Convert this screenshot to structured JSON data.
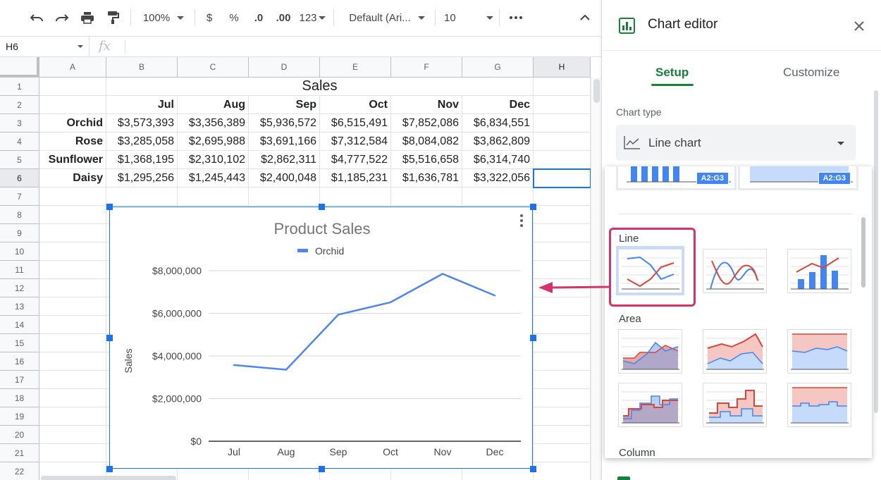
{
  "toolbar": {
    "zoom": "100%",
    "currency": "$",
    "percent": "%",
    "dec_decrease": ".0",
    "dec_increase": ".00",
    "more_formats": "123",
    "font": "Default (Ari...",
    "font_size": "10"
  },
  "formula_bar": {
    "cell_ref": "H6",
    "fx": "fx",
    "formula": ""
  },
  "sheet": {
    "columns": [
      "A",
      "B",
      "C",
      "D",
      "E",
      "F",
      "G",
      "H"
    ],
    "rows": [
      "1",
      "2",
      "3",
      "4",
      "5",
      "6",
      "7",
      "8",
      "9",
      "10",
      "11",
      "12",
      "13",
      "14",
      "15",
      "16",
      "17",
      "18",
      "19",
      "20",
      "21",
      "22"
    ],
    "title": "Sales",
    "months": [
      "Jul",
      "Aug",
      "Sep",
      "Oct",
      "Nov",
      "Dec"
    ],
    "data": [
      {
        "name": "Orchid",
        "values": [
          "$3,573,393",
          "$3,356,389",
          "$5,936,572",
          "$6,515,491",
          "$7,852,086",
          "$6,834,551"
        ]
      },
      {
        "name": "Rose",
        "values": [
          "$3,285,058",
          "$2,695,988",
          "$3,691,166",
          "$7,312,584",
          "$8,084,082",
          "$3,862,809"
        ]
      },
      {
        "name": "Sunflower",
        "values": [
          "$1,368,195",
          "$2,310,102",
          "$2,862,311",
          "$4,777,522",
          "$5,516,658",
          "$6,314,740"
        ]
      },
      {
        "name": "Daisy",
        "values": [
          "$1,295,256",
          "$1,245,443",
          "$2,400,048",
          "$1,185,231",
          "$1,636,781",
          "$3,322,056"
        ]
      }
    ]
  },
  "chart_data": {
    "type": "line",
    "title": "Product Sales",
    "ylabel": "Sales",
    "xlabel": "",
    "categories": [
      "Jul",
      "Aug",
      "Sep",
      "Oct",
      "Nov",
      "Dec"
    ],
    "series": [
      {
        "name": "Orchid",
        "color": "#4f86ec",
        "values": [
          3573393,
          3356389,
          5936572,
          6515491,
          7852086,
          6834551
        ]
      }
    ],
    "ylim": [
      0,
      8000000
    ],
    "yticks": [
      0,
      2000000,
      4000000,
      6000000,
      8000000
    ],
    "ytick_labels": [
      "$0",
      "$2,000,000",
      "$4,000,000",
      "$6,000,000",
      "$8,000,000"
    ],
    "grid": true,
    "legend": "top"
  },
  "editor": {
    "title": "Chart editor",
    "tabs": [
      "Setup",
      "Customize"
    ],
    "chart_type_label": "Chart type",
    "chart_type_value": "Line chart",
    "range_badge": "A2:G3",
    "sections": [
      "Line",
      "Area",
      "Column"
    ]
  },
  "colors": {
    "accent": "#1a73e8",
    "green": "#188038",
    "series_blue": "#4f86ec",
    "series_red": "#db4437",
    "highlight": "#d6336c"
  }
}
